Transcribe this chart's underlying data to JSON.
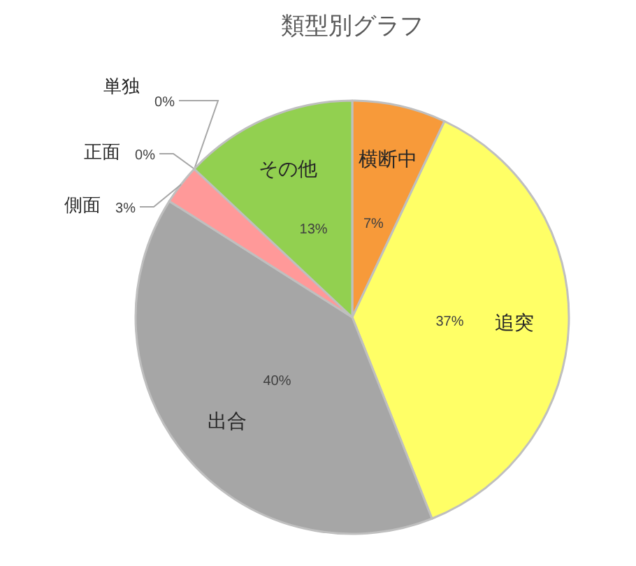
{
  "chart_data": {
    "type": "pie",
    "title": "類型別グラフ",
    "categories": [
      "横断中",
      "追突",
      "出合",
      "側面",
      "正面",
      "単独",
      "その他"
    ],
    "values": [
      7,
      37,
      40,
      3,
      0,
      0,
      13
    ],
    "value_labels": [
      "7%",
      "37%",
      "40%",
      "3%",
      "0%",
      "0%",
      "13%"
    ],
    "colors": [
      "#f79a3a",
      "#ffff66",
      "#a6a6a6",
      "#ff9999",
      null,
      null,
      "#92d050"
    ]
  }
}
